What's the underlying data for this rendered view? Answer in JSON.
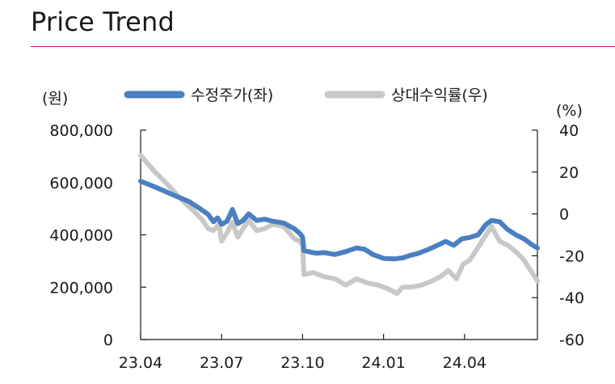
{
  "page": {
    "title": "Price Trend"
  },
  "chart_data": {
    "type": "line",
    "title": "",
    "legend": {
      "placement": "top",
      "items": [
        "수정주가(좌)",
        "상대수익률(우)"
      ]
    },
    "left_axis": {
      "unit": "(원)",
      "ylim": [
        0,
        800000
      ],
      "ticks": [
        0,
        200000,
        400000,
        600000,
        800000
      ],
      "tick_labels": [
        "0",
        "200,000",
        "400,000",
        "600,000",
        "800,000"
      ]
    },
    "right_axis": {
      "unit": "(%)",
      "ylim": [
        -60,
        40
      ],
      "ticks": [
        -60,
        -40,
        -20,
        0,
        20,
        40
      ],
      "tick_labels": [
        "-60",
        "-40",
        "-20",
        "0",
        "20",
        "40"
      ]
    },
    "x_axis": {
      "range": [
        0,
        14.7
      ],
      "ticks": [
        0,
        3,
        6,
        9,
        12
      ],
      "tick_labels": [
        "23.04",
        "23.07",
        "23.10",
        "24.01",
        "24.04"
      ]
    },
    "grid": false,
    "series": [
      {
        "name": "수정주가(좌)",
        "axis": "left",
        "color": "#4a7fc1",
        "points": [
          [
            0,
            605000
          ],
          [
            0.6,
            580000
          ],
          [
            1.2,
            553000
          ],
          [
            1.8,
            527000
          ],
          [
            2.2,
            500000
          ],
          [
            2.5,
            478000
          ],
          [
            2.7,
            450000
          ],
          [
            2.85,
            465000
          ],
          [
            3.0,
            440000
          ],
          [
            3.2,
            452000
          ],
          [
            3.4,
            497000
          ],
          [
            3.6,
            443000
          ],
          [
            3.8,
            455000
          ],
          [
            4.0,
            480000
          ],
          [
            4.3,
            455000
          ],
          [
            4.6,
            460000
          ],
          [
            4.9,
            452000
          ],
          [
            5.3,
            445000
          ],
          [
            5.7,
            423000
          ],
          [
            5.9,
            405000
          ],
          [
            6.0,
            392000
          ],
          [
            6.05,
            340000
          ],
          [
            6.2,
            336000
          ],
          [
            6.5,
            330000
          ],
          [
            6.8,
            332000
          ],
          [
            7.2,
            325000
          ],
          [
            7.6,
            336000
          ],
          [
            8.0,
            350000
          ],
          [
            8.3,
            345000
          ],
          [
            8.6,
            325000
          ],
          [
            9.0,
            310000
          ],
          [
            9.4,
            308000
          ],
          [
            9.7,
            312000
          ],
          [
            10.0,
            322000
          ],
          [
            10.3,
            330000
          ],
          [
            10.7,
            346000
          ],
          [
            11.0,
            360000
          ],
          [
            11.3,
            375000
          ],
          [
            11.6,
            360000
          ],
          [
            11.9,
            385000
          ],
          [
            12.2,
            390000
          ],
          [
            12.5,
            400000
          ],
          [
            12.8,
            440000
          ],
          [
            13.0,
            455000
          ],
          [
            13.3,
            450000
          ],
          [
            13.6,
            420000
          ],
          [
            13.9,
            400000
          ],
          [
            14.2,
            385000
          ],
          [
            14.5,
            362000
          ],
          [
            14.7,
            350000
          ]
        ]
      },
      {
        "name": "상대수익률(우)",
        "axis": "right",
        "color": "#c8c8c8",
        "points": [
          [
            0,
            28
          ],
          [
            0.5,
            20.5
          ],
          [
            1.0,
            14
          ],
          [
            1.5,
            7
          ],
          [
            2.0,
            1
          ],
          [
            2.3,
            -3
          ],
          [
            2.5,
            -7
          ],
          [
            2.7,
            -8
          ],
          [
            2.9,
            -5
          ],
          [
            3.0,
            -13
          ],
          [
            3.2,
            -9
          ],
          [
            3.4,
            -4
          ],
          [
            3.6,
            -11
          ],
          [
            3.8,
            -7
          ],
          [
            4.0,
            -3
          ],
          [
            4.3,
            -8
          ],
          [
            4.6,
            -7
          ],
          [
            4.9,
            -5
          ],
          [
            5.3,
            -6
          ],
          [
            5.7,
            -12
          ],
          [
            5.9,
            -13
          ],
          [
            6.0,
            -15
          ],
          [
            6.05,
            -29
          ],
          [
            6.4,
            -28
          ],
          [
            6.8,
            -30
          ],
          [
            7.2,
            -31
          ],
          [
            7.6,
            -34
          ],
          [
            8.0,
            -31
          ],
          [
            8.4,
            -33
          ],
          [
            8.8,
            -34
          ],
          [
            9.2,
            -36
          ],
          [
            9.5,
            -38
          ],
          [
            9.7,
            -35
          ],
          [
            10.0,
            -35
          ],
          [
            10.4,
            -34
          ],
          [
            10.8,
            -32
          ],
          [
            11.1,
            -30
          ],
          [
            11.4,
            -27
          ],
          [
            11.7,
            -31
          ],
          [
            11.95,
            -24
          ],
          [
            12.2,
            -22
          ],
          [
            12.5,
            -16
          ],
          [
            12.8,
            -10
          ],
          [
            13.0,
            -6
          ],
          [
            13.3,
            -13
          ],
          [
            13.6,
            -15
          ],
          [
            13.9,
            -18
          ],
          [
            14.2,
            -22
          ],
          [
            14.5,
            -28
          ],
          [
            14.7,
            -32
          ]
        ]
      }
    ]
  }
}
